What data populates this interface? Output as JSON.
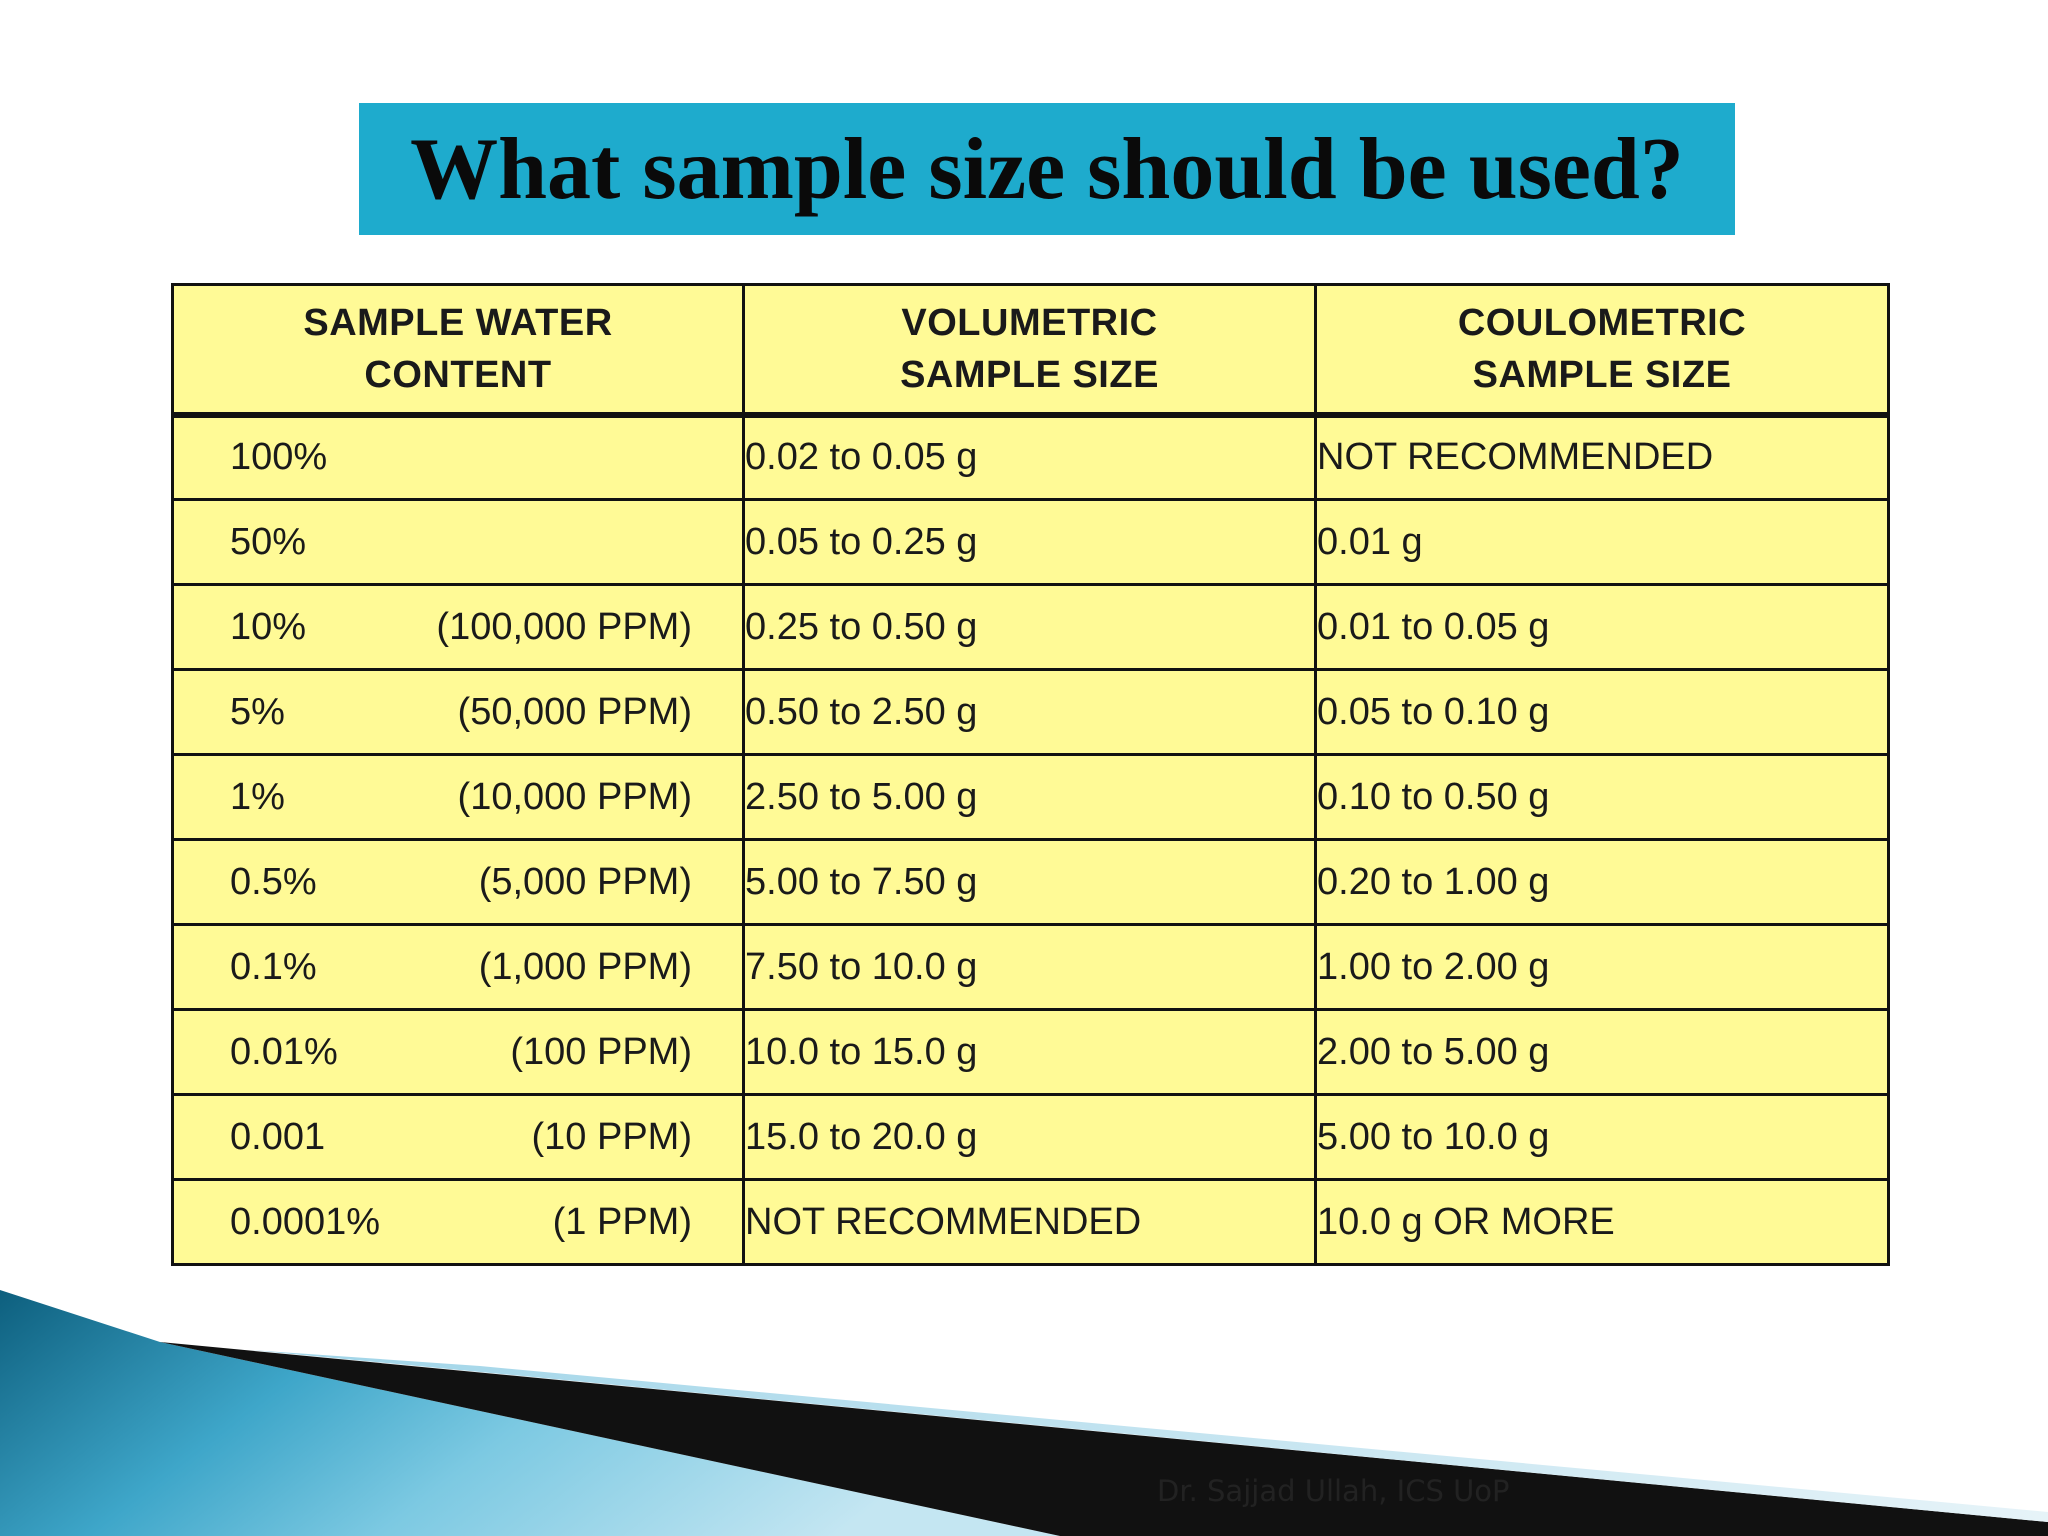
{
  "title": "What sample size should be used?",
  "table": {
    "headers": [
      {
        "line1": "SAMPLE WATER",
        "line2": "CONTENT"
      },
      {
        "line1": "VOLUMETRIC",
        "line2": "SAMPLE SIZE"
      },
      {
        "line1": "COULOMETRIC",
        "line2": "SAMPLE SIZE"
      }
    ],
    "rows": [
      {
        "content": "100%",
        "ppm": "",
        "volumetric": "0.02 to 0.05 g",
        "coulometric": "NOT RECOMMENDED"
      },
      {
        "content": "50%",
        "ppm": "",
        "volumetric": "0.05 to 0.25 g",
        "coulometric": "0.01 g"
      },
      {
        "content": "10%",
        "ppm": "(100,000 PPM)",
        "volumetric": "0.25 to 0.50 g",
        "coulometric": "0.01 to 0.05 g"
      },
      {
        "content": "5%",
        "ppm": "(50,000 PPM)",
        "volumetric": "0.50 to 2.50 g",
        "coulometric": "0.05 to 0.10 g"
      },
      {
        "content": "1%",
        "ppm": "(10,000 PPM)",
        "volumetric": "2.50 to 5.00 g",
        "coulometric": "0.10 to 0.50 g"
      },
      {
        "content": "0.5%",
        "ppm": "(5,000 PPM)",
        "volumetric": "5.00 to 7.50 g",
        "coulometric": "0.20 to 1.00 g"
      },
      {
        "content": "0.1%",
        "ppm": "(1,000 PPM)",
        "volumetric": "7.50 to 10.0 g",
        "coulometric": "1.00 to 2.00 g"
      },
      {
        "content": "0.01%",
        "ppm": "(100 PPM)",
        "volumetric": "10.0 to 15.0 g",
        "coulometric": "2.00 to 5.00 g"
      },
      {
        "content": "0.001",
        "ppm": "(10 PPM)",
        "volumetric": "15.0 to 20.0 g",
        "coulometric": "5.00 to 10.0 g"
      },
      {
        "content": "0.0001%",
        "ppm": "(1 PPM)",
        "volumetric": "NOT RECOMMENDED",
        "coulometric": "10.0 g OR MORE"
      }
    ]
  },
  "footer": "Dr. Sajjad Ullah, ICS UoP",
  "colors": {
    "title_bg": "#1eabcd",
    "table_bg": "#fffa96",
    "border": "#111111"
  }
}
